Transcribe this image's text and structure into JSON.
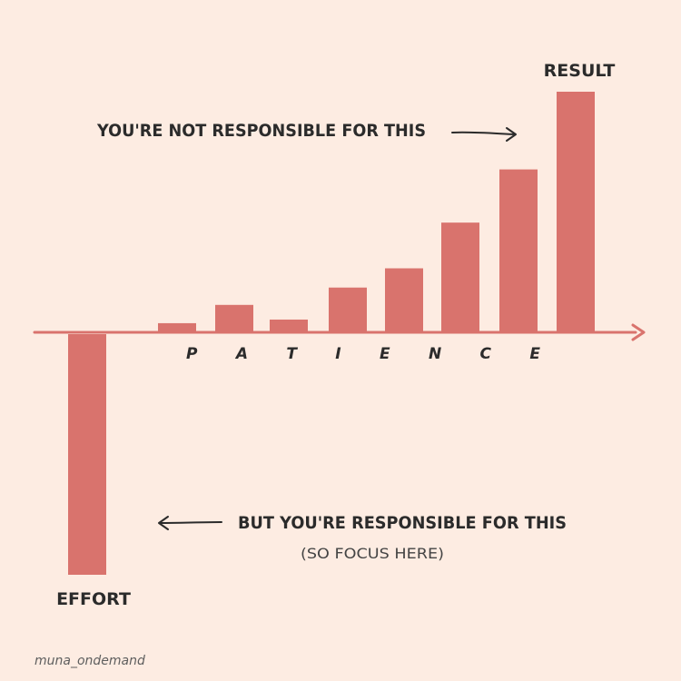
{
  "colors": {
    "background": "#fdece2",
    "bar": "#d9736d",
    "axis": "#d9736d",
    "text": "#2b2b2b",
    "arrow": "#2b2b2b"
  },
  "chart_data": {
    "type": "bar",
    "title": "",
    "xlabel": "P A T I E N C E",
    "ylabel": "",
    "ylim": [
      -100,
      100
    ],
    "grid": false,
    "categories": [
      "",
      "",
      "",
      "",
      "",
      "",
      "",
      "",
      ""
    ],
    "values": [
      -100,
      3.8,
      11.4,
      5.3,
      18.6,
      26.6,
      45.6,
      67.7,
      100
    ],
    "bar_labels": [
      {
        "index": 0,
        "text": "EFFORT"
      },
      {
        "index": 8,
        "text": "RESULT"
      }
    ],
    "annotations": [
      {
        "text": "YOU'RE NOT RESPONSIBLE FOR THIS",
        "arrow": "right",
        "target": "RESULT"
      },
      {
        "text": "BUT YOU'RE RESPONSIBLE FOR THIS",
        "arrow": "left",
        "target": "EFFORT"
      },
      {
        "text": "(SO FOCUS HERE)"
      }
    ]
  },
  "credit": "muna_ondemand"
}
